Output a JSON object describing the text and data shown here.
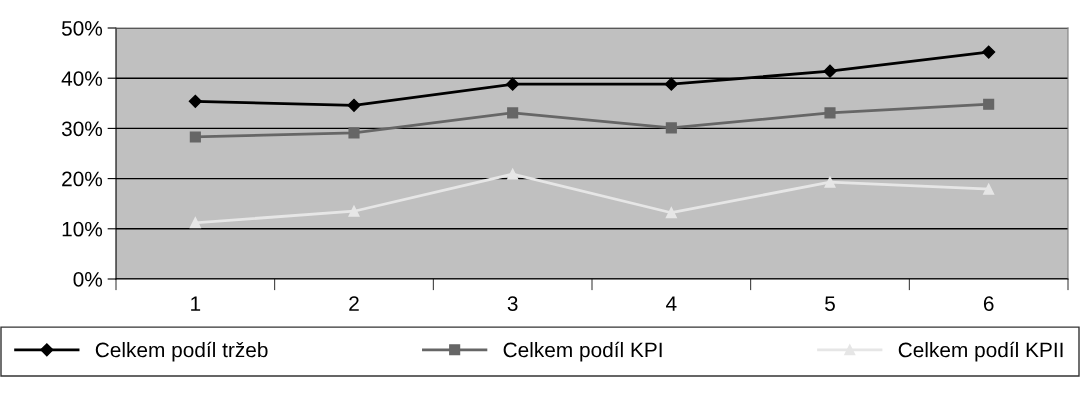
{
  "chart_data": {
    "type": "line",
    "categories": [
      "1",
      "2",
      "3",
      "4",
      "5",
      "6"
    ],
    "series": [
      {
        "name": "Celkem podíl tržeb",
        "color": "#000000",
        "marker": "diamond",
        "values": [
          35.4,
          34.6,
          38.8,
          38.8,
          41.4,
          45.2
        ]
      },
      {
        "name": "Celkem podíl KPI",
        "color": "#666666",
        "marker": "square",
        "values": [
          28.3,
          29.1,
          33.1,
          30.1,
          33.1,
          34.8
        ]
      },
      {
        "name": "Celkem podíl KPII",
        "color": "#e6e6e6",
        "marker": "triangle",
        "values": [
          11.2,
          13.5,
          20.9,
          13.2,
          19.3,
          17.9
        ]
      }
    ],
    "ylim": [
      0,
      50
    ],
    "yticks": [
      {
        "value": 0,
        "label": "0%"
      },
      {
        "value": 10,
        "label": "10%"
      },
      {
        "value": 20,
        "label": "20%"
      },
      {
        "value": 30,
        "label": "30%"
      },
      {
        "value": 40,
        "label": "40%"
      },
      {
        "value": 50,
        "label": "50%"
      }
    ],
    "grid": "y",
    "legend": "bottom",
    "line_style": "solid"
  }
}
